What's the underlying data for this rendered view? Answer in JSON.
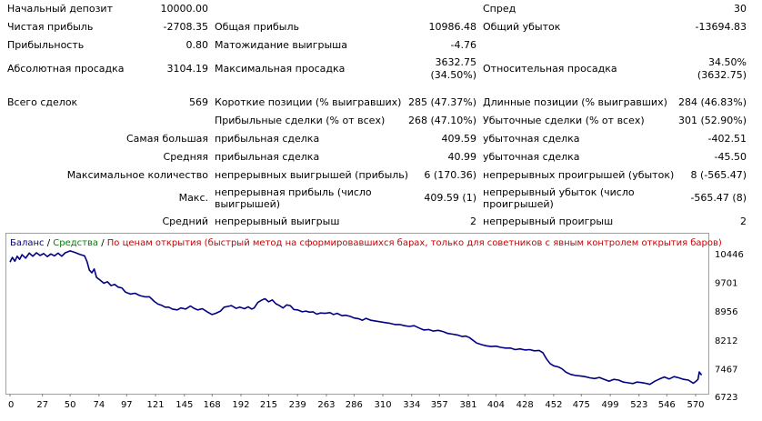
{
  "stats": {
    "rows": [
      {
        "id": "r1",
        "top": 3,
        "cells": [
          {
            "t": "Начальный депозит",
            "x": 8
          },
          {
            "t": "10000.00",
            "r": 229
          },
          {
            "t": "Спред",
            "x": 531
          },
          {
            "t": "30",
            "r": 821
          }
        ]
      },
      {
        "id": "r2",
        "top": 23,
        "cells": [
          {
            "t": "Чистая прибыль",
            "x": 8
          },
          {
            "t": "-2708.35",
            "r": 229
          },
          {
            "t": "Общая прибыль",
            "x": 236
          },
          {
            "t": "10986.48",
            "r": 524
          },
          {
            "t": "Общий убыток",
            "x": 531
          },
          {
            "t": "-13694.83",
            "r": 821
          }
        ]
      },
      {
        "id": "r3",
        "top": 43,
        "cells": [
          {
            "t": "Прибыльность",
            "x": 8
          },
          {
            "t": "0.80",
            "r": 229
          },
          {
            "t": "Матожидание выигрыша",
            "x": 236
          },
          {
            "t": "-4.76",
            "r": 524
          }
        ]
      },
      {
        "id": "r4",
        "top": 69,
        "cells": [
          {
            "t": "Абсолютная просадка",
            "x": 8
          },
          {
            "t": "3104.19",
            "r": 229
          },
          {
            "t": "Максимальная просадка",
            "x": 236
          },
          {
            "t": "Относительная просадка",
            "x": 531
          }
        ]
      },
      {
        "id": "r4a",
        "top": 62,
        "cells": [
          {
            "t": "3632.75",
            "r": 524
          },
          {
            "t": "34.50%",
            "r": 821
          }
        ]
      },
      {
        "id": "r4b",
        "top": 76,
        "cells": [
          {
            "t": "(34.50%)",
            "r": 524
          },
          {
            "t": "(3632.75)",
            "r": 821
          }
        ]
      },
      {
        "id": "r5",
        "top": 106,
        "cells": [
          {
            "t": "Всего сделок",
            "x": 8
          },
          {
            "t": "569",
            "r": 229
          },
          {
            "t": "Короткие позиции (% выигравших)",
            "x": 236
          },
          {
            "t": "285 (47.37%)",
            "r": 524
          },
          {
            "t": "Длинные позиции (% выигравших)",
            "x": 531
          },
          {
            "t": "284 (46.83%)",
            "r": 821
          }
        ]
      },
      {
        "id": "r6",
        "top": 126,
        "cells": [
          {
            "t": "Прибыльные сделки (% от всех)",
            "x": 236
          },
          {
            "t": "268 (47.10%)",
            "r": 524
          },
          {
            "t": "Убыточные сделки (% от всех)",
            "x": 531
          },
          {
            "t": "301 (52.90%)",
            "r": 821
          }
        ]
      },
      {
        "id": "r7",
        "top": 146,
        "cells": [
          {
            "t": "Самая большая",
            "r": 229
          },
          {
            "t": "прибыльная сделка",
            "x": 236
          },
          {
            "t": "409.59",
            "r": 524
          },
          {
            "t": "убыточная сделка",
            "x": 531
          },
          {
            "t": "-402.51",
            "r": 821
          }
        ]
      },
      {
        "id": "r8",
        "top": 166,
        "cells": [
          {
            "t": "Средняя",
            "r": 229
          },
          {
            "t": "прибыльная сделка",
            "x": 236
          },
          {
            "t": "40.99",
            "r": 524
          },
          {
            "t": "убыточная сделка",
            "x": 531
          },
          {
            "t": "-45.50",
            "r": 821
          }
        ]
      },
      {
        "id": "r9",
        "top": 186,
        "cells": [
          {
            "t": "Максимальное количество",
            "r": 229
          },
          {
            "t": "непрерывных выигрышей (прибыль)",
            "x": 236
          },
          {
            "t": "6 (170.36)",
            "r": 524
          },
          {
            "t": "непрерывных проигрышей (убыток)",
            "x": 531
          },
          {
            "t": "8 (-565.47)",
            "r": 821
          }
        ]
      },
      {
        "id": "r10",
        "top": 211,
        "cells": [
          {
            "t": "Макс.",
            "r": 229
          },
          {
            "t": "409.59 (1)",
            "r": 524
          },
          {
            "t": "-565.47 (8)",
            "r": 821
          }
        ]
      },
      {
        "id": "r10a",
        "top": 205,
        "cells": [
          {
            "t": "непрерывная прибыль (число",
            "x": 236
          },
          {
            "t": "непрерывный убыток (число",
            "x": 531
          }
        ]
      },
      {
        "id": "r10b",
        "top": 218,
        "cells": [
          {
            "t": "выигрышей)",
            "x": 236
          },
          {
            "t": "проигрышей)",
            "x": 531
          }
        ]
      },
      {
        "id": "r11",
        "top": 237,
        "cells": [
          {
            "t": "Средний",
            "r": 229
          },
          {
            "t": "непрерывный выигрыш",
            "x": 236
          },
          {
            "t": "2",
            "r": 524
          },
          {
            "t": "непрерывный проигрыш",
            "x": 531
          },
          {
            "t": "2",
            "r": 821
          }
        ]
      }
    ]
  },
  "legend": {
    "balance": "Баланс",
    "sep1": " / ",
    "equity": "Средства",
    "sep2": " / ",
    "mode": "По ценам открытия (быстрый метод на сформировавшихся барах, только для советников с явным контролем открытия баров)"
  },
  "colors": {
    "balance_line": "#000080",
    "axis_text": "#000000",
    "border": "#a0a0a0"
  },
  "chart_data": {
    "type": "line",
    "x_ticks": [
      0,
      27,
      50,
      74,
      97,
      121,
      145,
      168,
      192,
      215,
      239,
      263,
      286,
      310,
      334,
      357,
      381,
      404,
      428,
      452,
      475,
      499,
      523,
      546,
      570
    ],
    "y_ticks": [
      10446,
      9701,
      8956,
      8212,
      7467,
      6723
    ],
    "xlim": [
      0,
      575
    ],
    "ylim": [
      6723,
      10700
    ],
    "series": [
      {
        "name": "Баланс",
        "points": [
          [
            0,
            10230
          ],
          [
            2,
            10350
          ],
          [
            4,
            10250
          ],
          [
            6,
            10380
          ],
          [
            8,
            10300
          ],
          [
            10,
            10420
          ],
          [
            13,
            10330
          ],
          [
            16,
            10460
          ],
          [
            19,
            10380
          ],
          [
            22,
            10470
          ],
          [
            25,
            10400
          ],
          [
            28,
            10450
          ],
          [
            31,
            10370
          ],
          [
            34,
            10440
          ],
          [
            37,
            10390
          ],
          [
            40,
            10460
          ],
          [
            43,
            10380
          ],
          [
            46,
            10470
          ],
          [
            50,
            10520
          ],
          [
            54,
            10480
          ],
          [
            58,
            10430
          ],
          [
            62,
            10390
          ],
          [
            64,
            10240
          ],
          [
            66,
            10020
          ],
          [
            68,
            9950
          ],
          [
            70,
            10050
          ],
          [
            72,
            9830
          ],
          [
            75,
            9760
          ],
          [
            78,
            9680
          ],
          [
            81,
            9720
          ],
          [
            84,
            9620
          ],
          [
            87,
            9650
          ],
          [
            90,
            9580
          ],
          [
            93,
            9560
          ],
          [
            96,
            9450
          ],
          [
            100,
            9400
          ],
          [
            104,
            9420
          ],
          [
            108,
            9360
          ],
          [
            112,
            9330
          ],
          [
            116,
            9330
          ],
          [
            120,
            9210
          ],
          [
            123,
            9140
          ],
          [
            126,
            9110
          ],
          [
            129,
            9060
          ],
          [
            132,
            9060
          ],
          [
            135,
            9010
          ],
          [
            139,
            8990
          ],
          [
            142,
            9040
          ],
          [
            146,
            9010
          ],
          [
            150,
            9090
          ],
          [
            153,
            9030
          ],
          [
            156,
            8990
          ],
          [
            160,
            9020
          ],
          [
            164,
            8940
          ],
          [
            168,
            8870
          ],
          [
            171,
            8900
          ],
          [
            175,
            8960
          ],
          [
            178,
            9060
          ],
          [
            181,
            9080
          ],
          [
            184,
            9100
          ],
          [
            188,
            9030
          ],
          [
            191,
            9060
          ],
          [
            195,
            9020
          ],
          [
            198,
            9070
          ],
          [
            201,
            9010
          ],
          [
            203,
            9040
          ],
          [
            206,
            9180
          ],
          [
            209,
            9240
          ],
          [
            212,
            9280
          ],
          [
            215,
            9200
          ],
          [
            218,
            9250
          ],
          [
            221,
            9150
          ],
          [
            224,
            9100
          ],
          [
            227,
            9040
          ],
          [
            230,
            9120
          ],
          [
            233,
            9100
          ],
          [
            236,
            9000
          ],
          [
            239,
            8990
          ],
          [
            243,
            8940
          ],
          [
            246,
            8960
          ],
          [
            249,
            8930
          ],
          [
            252,
            8940
          ],
          [
            255,
            8880
          ],
          [
            258,
            8910
          ],
          [
            262,
            8900
          ],
          [
            266,
            8920
          ],
          [
            269,
            8870
          ],
          [
            272,
            8900
          ],
          [
            276,
            8840
          ],
          [
            279,
            8850
          ],
          [
            283,
            8820
          ],
          [
            286,
            8780
          ],
          [
            290,
            8760
          ],
          [
            293,
            8720
          ],
          [
            296,
            8770
          ],
          [
            300,
            8720
          ],
          [
            304,
            8700
          ],
          [
            308,
            8680
          ],
          [
            312,
            8660
          ],
          [
            316,
            8640
          ],
          [
            320,
            8610
          ],
          [
            324,
            8610
          ],
          [
            328,
            8580
          ],
          [
            332,
            8560
          ],
          [
            336,
            8580
          ],
          [
            340,
            8520
          ],
          [
            344,
            8470
          ],
          [
            348,
            8480
          ],
          [
            352,
            8440
          ],
          [
            356,
            8460
          ],
          [
            360,
            8430
          ],
          [
            364,
            8380
          ],
          [
            368,
            8360
          ],
          [
            372,
            8340
          ],
          [
            376,
            8300
          ],
          [
            379,
            8310
          ],
          [
            382,
            8270
          ],
          [
            385,
            8200
          ],
          [
            388,
            8130
          ],
          [
            392,
            8090
          ],
          [
            396,
            8060
          ],
          [
            400,
            8040
          ],
          [
            404,
            8050
          ],
          [
            408,
            8020
          ],
          [
            412,
            8000
          ],
          [
            416,
            8000
          ],
          [
            420,
            7960
          ],
          [
            424,
            7980
          ],
          [
            428,
            7950
          ],
          [
            432,
            7960
          ],
          [
            436,
            7930
          ],
          [
            440,
            7940
          ],
          [
            443,
            7880
          ],
          [
            446,
            7720
          ],
          [
            449,
            7600
          ],
          [
            452,
            7540
          ],
          [
            456,
            7510
          ],
          [
            459,
            7460
          ],
          [
            462,
            7380
          ],
          [
            466,
            7320
          ],
          [
            470,
            7290
          ],
          [
            474,
            7280
          ],
          [
            478,
            7260
          ],
          [
            482,
            7230
          ],
          [
            486,
            7210
          ],
          [
            490,
            7240
          ],
          [
            494,
            7190
          ],
          [
            498,
            7140
          ],
          [
            502,
            7190
          ],
          [
            506,
            7170
          ],
          [
            510,
            7120
          ],
          [
            514,
            7100
          ],
          [
            518,
            7080
          ],
          [
            521,
            7120
          ],
          [
            524,
            7110
          ],
          [
            528,
            7090
          ],
          [
            532,
            7060
          ],
          [
            536,
            7140
          ],
          [
            540,
            7200
          ],
          [
            544,
            7250
          ],
          [
            548,
            7200
          ],
          [
            552,
            7260
          ],
          [
            556,
            7230
          ],
          [
            560,
            7190
          ],
          [
            564,
            7170
          ],
          [
            568,
            7090
          ],
          [
            570,
            7130
          ],
          [
            572,
            7190
          ],
          [
            573,
            7380
          ],
          [
            575,
            7300
          ]
        ]
      }
    ]
  }
}
